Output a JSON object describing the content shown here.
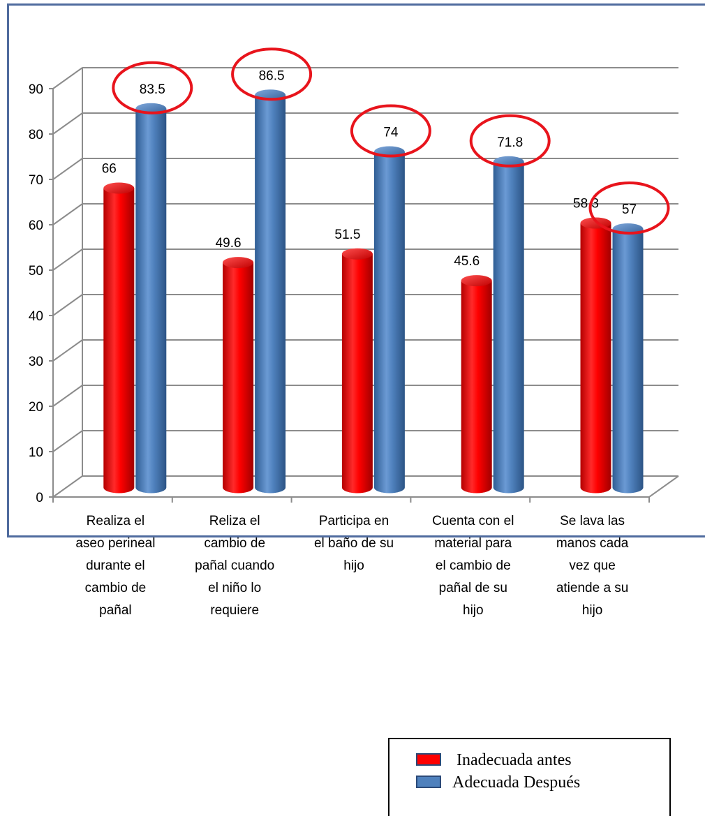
{
  "chart_data": {
    "type": "bar",
    "categories": [
      [
        "Realiza el",
        "aseo perineal",
        "durante el",
        "cambio de",
        "pañal"
      ],
      [
        "Reliza el",
        "cambio de",
        "pañal cuando",
        "el niño lo",
        "requiere"
      ],
      [
        "Participa en",
        "el baño de su",
        "hijo"
      ],
      [
        "Cuenta con el",
        "material para",
        "el cambio de",
        "pañal de su",
        "hijo"
      ],
      [
        "Se lava las",
        "manos cada",
        "vez que",
        "atiende a su",
        "hijo"
      ]
    ],
    "series": [
      {
        "name": "Inadecuada antes",
        "color": "#ff0000",
        "values": [
          66,
          49.6,
          51.5,
          45.6,
          58.3
        ]
      },
      {
        "name": "Adecuada Después",
        "color": "#4f81bd",
        "values": [
          83.5,
          86.5,
          74,
          71.8,
          57
        ]
      }
    ],
    "value_labels": [
      [
        "66",
        "49.6",
        "51.5",
        "45.6",
        "58.3"
      ],
      [
        "83.5",
        "86.5",
        "74",
        "71.8",
        "57"
      ]
    ],
    "highlighted_series": "Adecuada Después",
    "highlight_color": "#e8141c",
    "yticks": [
      "0",
      "10",
      "20",
      "30",
      "40",
      "50",
      "60",
      "70",
      "80",
      "90"
    ],
    "ylim": [
      0,
      90
    ],
    "grid": true,
    "style": "3d-cylinder",
    "legend_position": "bottom-right",
    "title": "",
    "xlabel": "",
    "ylabel": ""
  }
}
